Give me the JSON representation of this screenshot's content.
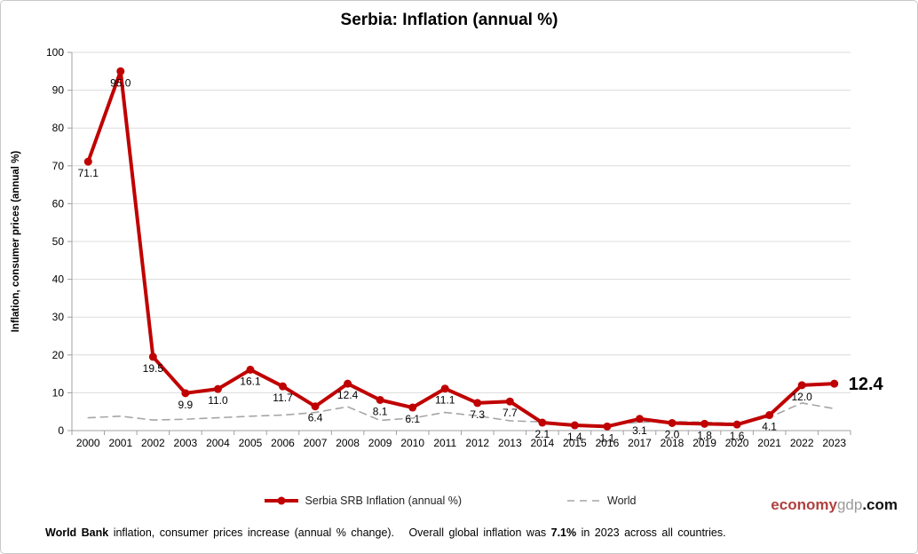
{
  "window_title": "Serbia: Inflation (annual %)",
  "chart_data": {
    "type": "line",
    "title": "Serbia: Inflation (annual %)",
    "ylabel": "Inflation, consumer prices (annual %)",
    "xlabel": "",
    "ylim": [
      0,
      100
    ],
    "ytick_step": 10,
    "grid": true,
    "legend_position": "bottom",
    "categories": [
      "2000",
      "2001",
      "2002",
      "2003",
      "2004",
      "2005",
      "2006",
      "2007",
      "2008",
      "2009",
      "2010",
      "2011",
      "2012",
      "2013",
      "2014",
      "2015",
      "2016",
      "2017",
      "2018",
      "2019",
      "2020",
      "2021",
      "2022",
      "2023"
    ],
    "series": [
      {
        "name": "Serbia SRB Inflation (annual %)",
        "color": "#c00000",
        "line_style": "solid",
        "markers": true,
        "data_labels": true,
        "values": [
          71.1,
          95.0,
          19.5,
          9.9,
          11.0,
          16.1,
          11.7,
          6.4,
          12.4,
          8.1,
          6.1,
          11.1,
          7.3,
          7.7,
          2.1,
          1.4,
          1.1,
          3.1,
          2.0,
          1.8,
          1.6,
          4.1,
          12.0,
          12.4
        ]
      },
      {
        "name": "World",
        "color": "#a6a6a6",
        "line_style": "dashed",
        "markers": false,
        "data_labels": false,
        "values": [
          3.4,
          3.8,
          2.8,
          3.0,
          3.4,
          3.8,
          4.1,
          4.8,
          6.3,
          2.7,
          3.3,
          4.8,
          3.9,
          2.6,
          2.3,
          1.4,
          1.5,
          2.2,
          2.4,
          2.2,
          1.9,
          3.5,
          7.3,
          5.8
        ]
      }
    ],
    "last_value_callout": "12.4"
  },
  "legend": {
    "serbia_label": "Serbia SRB Inflation (annual %)",
    "world_label": "World"
  },
  "logo": {
    "economy": "economy",
    "gdp": "gdp",
    "dotcom": ".com"
  },
  "footer": {
    "source_bold": "World Bank",
    "text_a": " inflation, consumer prices increase (annual % change).   Overall global inflation was ",
    "stat_bold": "7.1%",
    "text_b": " in 2023 across all countries."
  },
  "colors": {
    "serbia_line": "#c00000",
    "world_line": "#a6a6a6",
    "gridline": "#dcdcdc",
    "axis": "#a0a0a0",
    "logo_red": "#b0413e",
    "logo_gray": "#9b9b9b"
  }
}
